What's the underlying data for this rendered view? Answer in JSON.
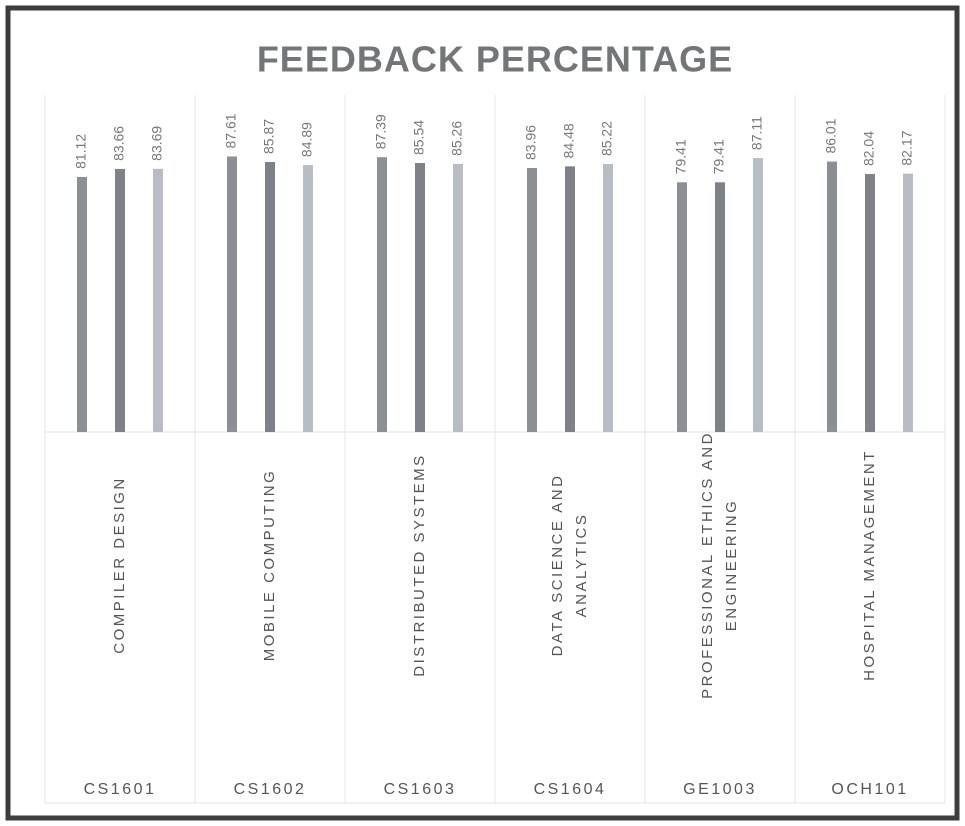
{
  "chart_data": {
    "type": "bar",
    "title": "FEEDBACK PERCENTAGE",
    "categories": [
      "CS1601",
      "CS1602",
      "CS1603",
      "CS1604",
      "GE1003",
      "OCH101"
    ],
    "category_names": [
      [
        "COMPILER DESIGN"
      ],
      [
        "MOBILE COMPUTING"
      ],
      [
        "DISTRIBUTED SYSTEMS"
      ],
      [
        "DATA SCIENCE AND",
        "ANALYTICS"
      ],
      [
        "PROFESSIONAL ETHICS AND",
        "ENGINEERING"
      ],
      [
        "HOSPITAL MANAGEMENT"
      ]
    ],
    "series": [
      {
        "color": "#8c8f94",
        "values": [
          81.12,
          87.61,
          87.39,
          83.96,
          79.41,
          86.01
        ]
      },
      {
        "color": "#7e8187",
        "values": [
          83.66,
          85.87,
          85.54,
          84.48,
          79.41,
          82.04
        ]
      },
      {
        "color": "#b8bcc5",
        "values": [
          83.69,
          84.89,
          85.26,
          85.22,
          87.11,
          82.17
        ]
      }
    ],
    "ylim": [
      0,
      90
    ]
  }
}
